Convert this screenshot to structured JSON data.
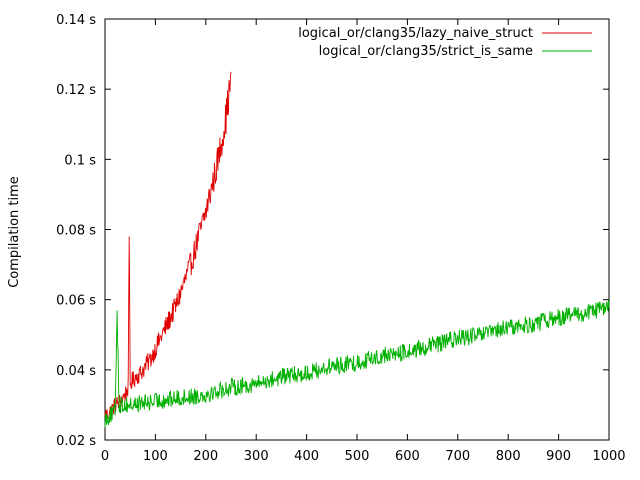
{
  "chart_data": {
    "type": "line",
    "title": "",
    "xlabel": "",
    "ylabel": "Compilation time",
    "xlim": [
      0,
      1000
    ],
    "ylim": [
      0.02,
      0.14
    ],
    "x_ticks": [
      "0",
      "100",
      "200",
      "300",
      "400",
      "500",
      "600",
      "700",
      "800",
      "900",
      "1000"
    ],
    "x_tick_values": [
      0,
      100,
      200,
      300,
      400,
      500,
      600,
      700,
      800,
      900,
      1000
    ],
    "y_ticks": [
      "0.02 s",
      "0.04 s",
      "0.06 s",
      "0.08 s",
      "0.1 s",
      "0.12 s",
      "0.14 s"
    ],
    "y_tick_values": [
      0.02,
      0.04,
      0.06,
      0.08,
      0.1,
      0.12,
      0.14
    ],
    "grid": false,
    "legend_position": "top-right",
    "series": [
      {
        "name": "logical_or/clang35/lazy_naive_struct",
        "color": "#e00000",
        "x": [
          0,
          10,
          20,
          30,
          40,
          46,
          48,
          50,
          60,
          70,
          80,
          90,
          100,
          110,
          120,
          130,
          140,
          150,
          160,
          170,
          180,
          190,
          200,
          210,
          220,
          230,
          240,
          250
        ],
        "values": [
          0.027,
          0.028,
          0.03,
          0.031,
          0.033,
          0.035,
          0.078,
          0.036,
          0.038,
          0.039,
          0.041,
          0.043,
          0.046,
          0.049,
          0.052,
          0.055,
          0.058,
          0.062,
          0.066,
          0.07,
          0.075,
          0.08,
          0.085,
          0.091,
          0.097,
          0.104,
          0.112,
          0.123
        ]
      },
      {
        "name": "logical_or/clang35/strict_is_same",
        "color": "#00b000",
        "x": [
          0,
          20,
          24,
          28,
          50,
          100,
          150,
          200,
          250,
          300,
          350,
          400,
          450,
          500,
          550,
          600,
          650,
          700,
          750,
          800,
          850,
          900,
          950,
          1000
        ],
        "values": [
          0.026,
          0.028,
          0.057,
          0.03,
          0.03,
          0.031,
          0.032,
          0.033,
          0.035,
          0.036,
          0.038,
          0.039,
          0.041,
          0.042,
          0.044,
          0.045,
          0.047,
          0.049,
          0.05,
          0.052,
          0.053,
          0.055,
          0.056,
          0.058
        ]
      }
    ]
  }
}
